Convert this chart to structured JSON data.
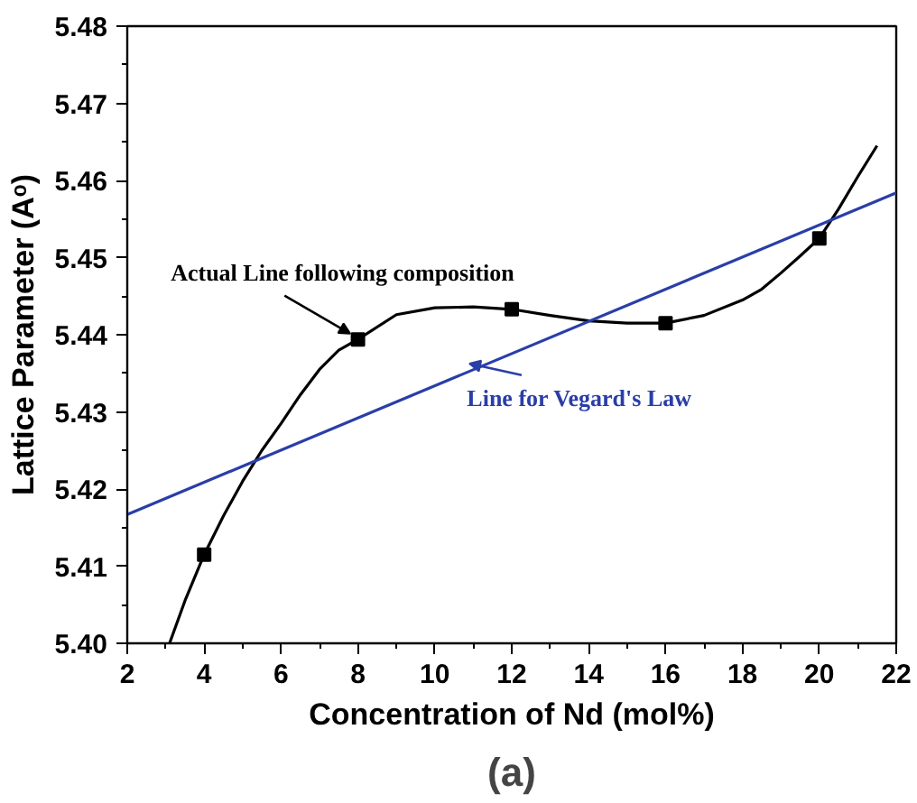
{
  "chart_data": {
    "type": "line",
    "title": "(a)",
    "xlabel": "Concentration of Nd (mol%)",
    "ylabel": "Lattice Parameter (Aᵒ)",
    "xlim": [
      2,
      22
    ],
    "xticks": [
      2,
      4,
      6,
      8,
      10,
      12,
      14,
      16,
      18,
      20,
      22
    ],
    "ylim": [
      5.4,
      5.48
    ],
    "yticks": [
      {
        "value": 5.4,
        "label": "5.40"
      },
      {
        "value": 5.41,
        "label": "5.41"
      },
      {
        "value": 5.42,
        "label": "5.42"
      },
      {
        "value": 5.43,
        "label": "5.43"
      },
      {
        "value": 5.44,
        "label": "5.44"
      },
      {
        "value": 5.45,
        "label": "5.45"
      },
      {
        "value": 5.46,
        "label": "5.46"
      },
      {
        "value": 5.47,
        "label": "5.47"
      },
      {
        "value": 5.48,
        "label": "5.48"
      }
    ],
    "grid": false,
    "series": [
      {
        "color": "#000000",
        "marker": "none",
        "x": [
          3.1,
          3.5,
          4,
          4.5,
          5,
          5.5,
          6,
          6.5,
          7,
          7.5,
          8,
          9,
          10,
          11,
          12,
          13,
          14,
          15,
          16,
          17,
          18,
          18.5,
          19,
          19.5,
          20,
          20.5,
          21,
          21.5
        ],
        "values": [
          5.4,
          5.4055,
          5.4115,
          5.4165,
          5.421,
          5.425,
          5.4285,
          5.4322,
          5.4355,
          5.438,
          5.4394,
          5.4426,
          5.4435,
          5.4436,
          5.4433,
          5.4425,
          5.4418,
          5.4415,
          5.4415,
          5.4425,
          5.4445,
          5.4459,
          5.448,
          5.4502,
          5.4525,
          5.4563,
          5.4605,
          5.4645
        ]
      },
      {
        "type": "scatter",
        "color": "#000000",
        "marker": "square",
        "x": [
          4,
          8,
          12,
          16,
          20
        ],
        "values": [
          5.4115,
          5.4394,
          5.4433,
          5.4415,
          5.4525
        ]
      },
      {
        "color": "#2a3ea8",
        "marker": "none",
        "x": [
          2,
          22
        ],
        "values": [
          5.4167,
          5.4584
        ]
      }
    ],
    "annotations": [
      {
        "text": "Actual Line following composition",
        "x": 8,
        "y": 5.4394
      },
      {
        "text": "Line for Vegard's Law",
        "x": 11,
        "y": 5.436
      }
    ]
  }
}
